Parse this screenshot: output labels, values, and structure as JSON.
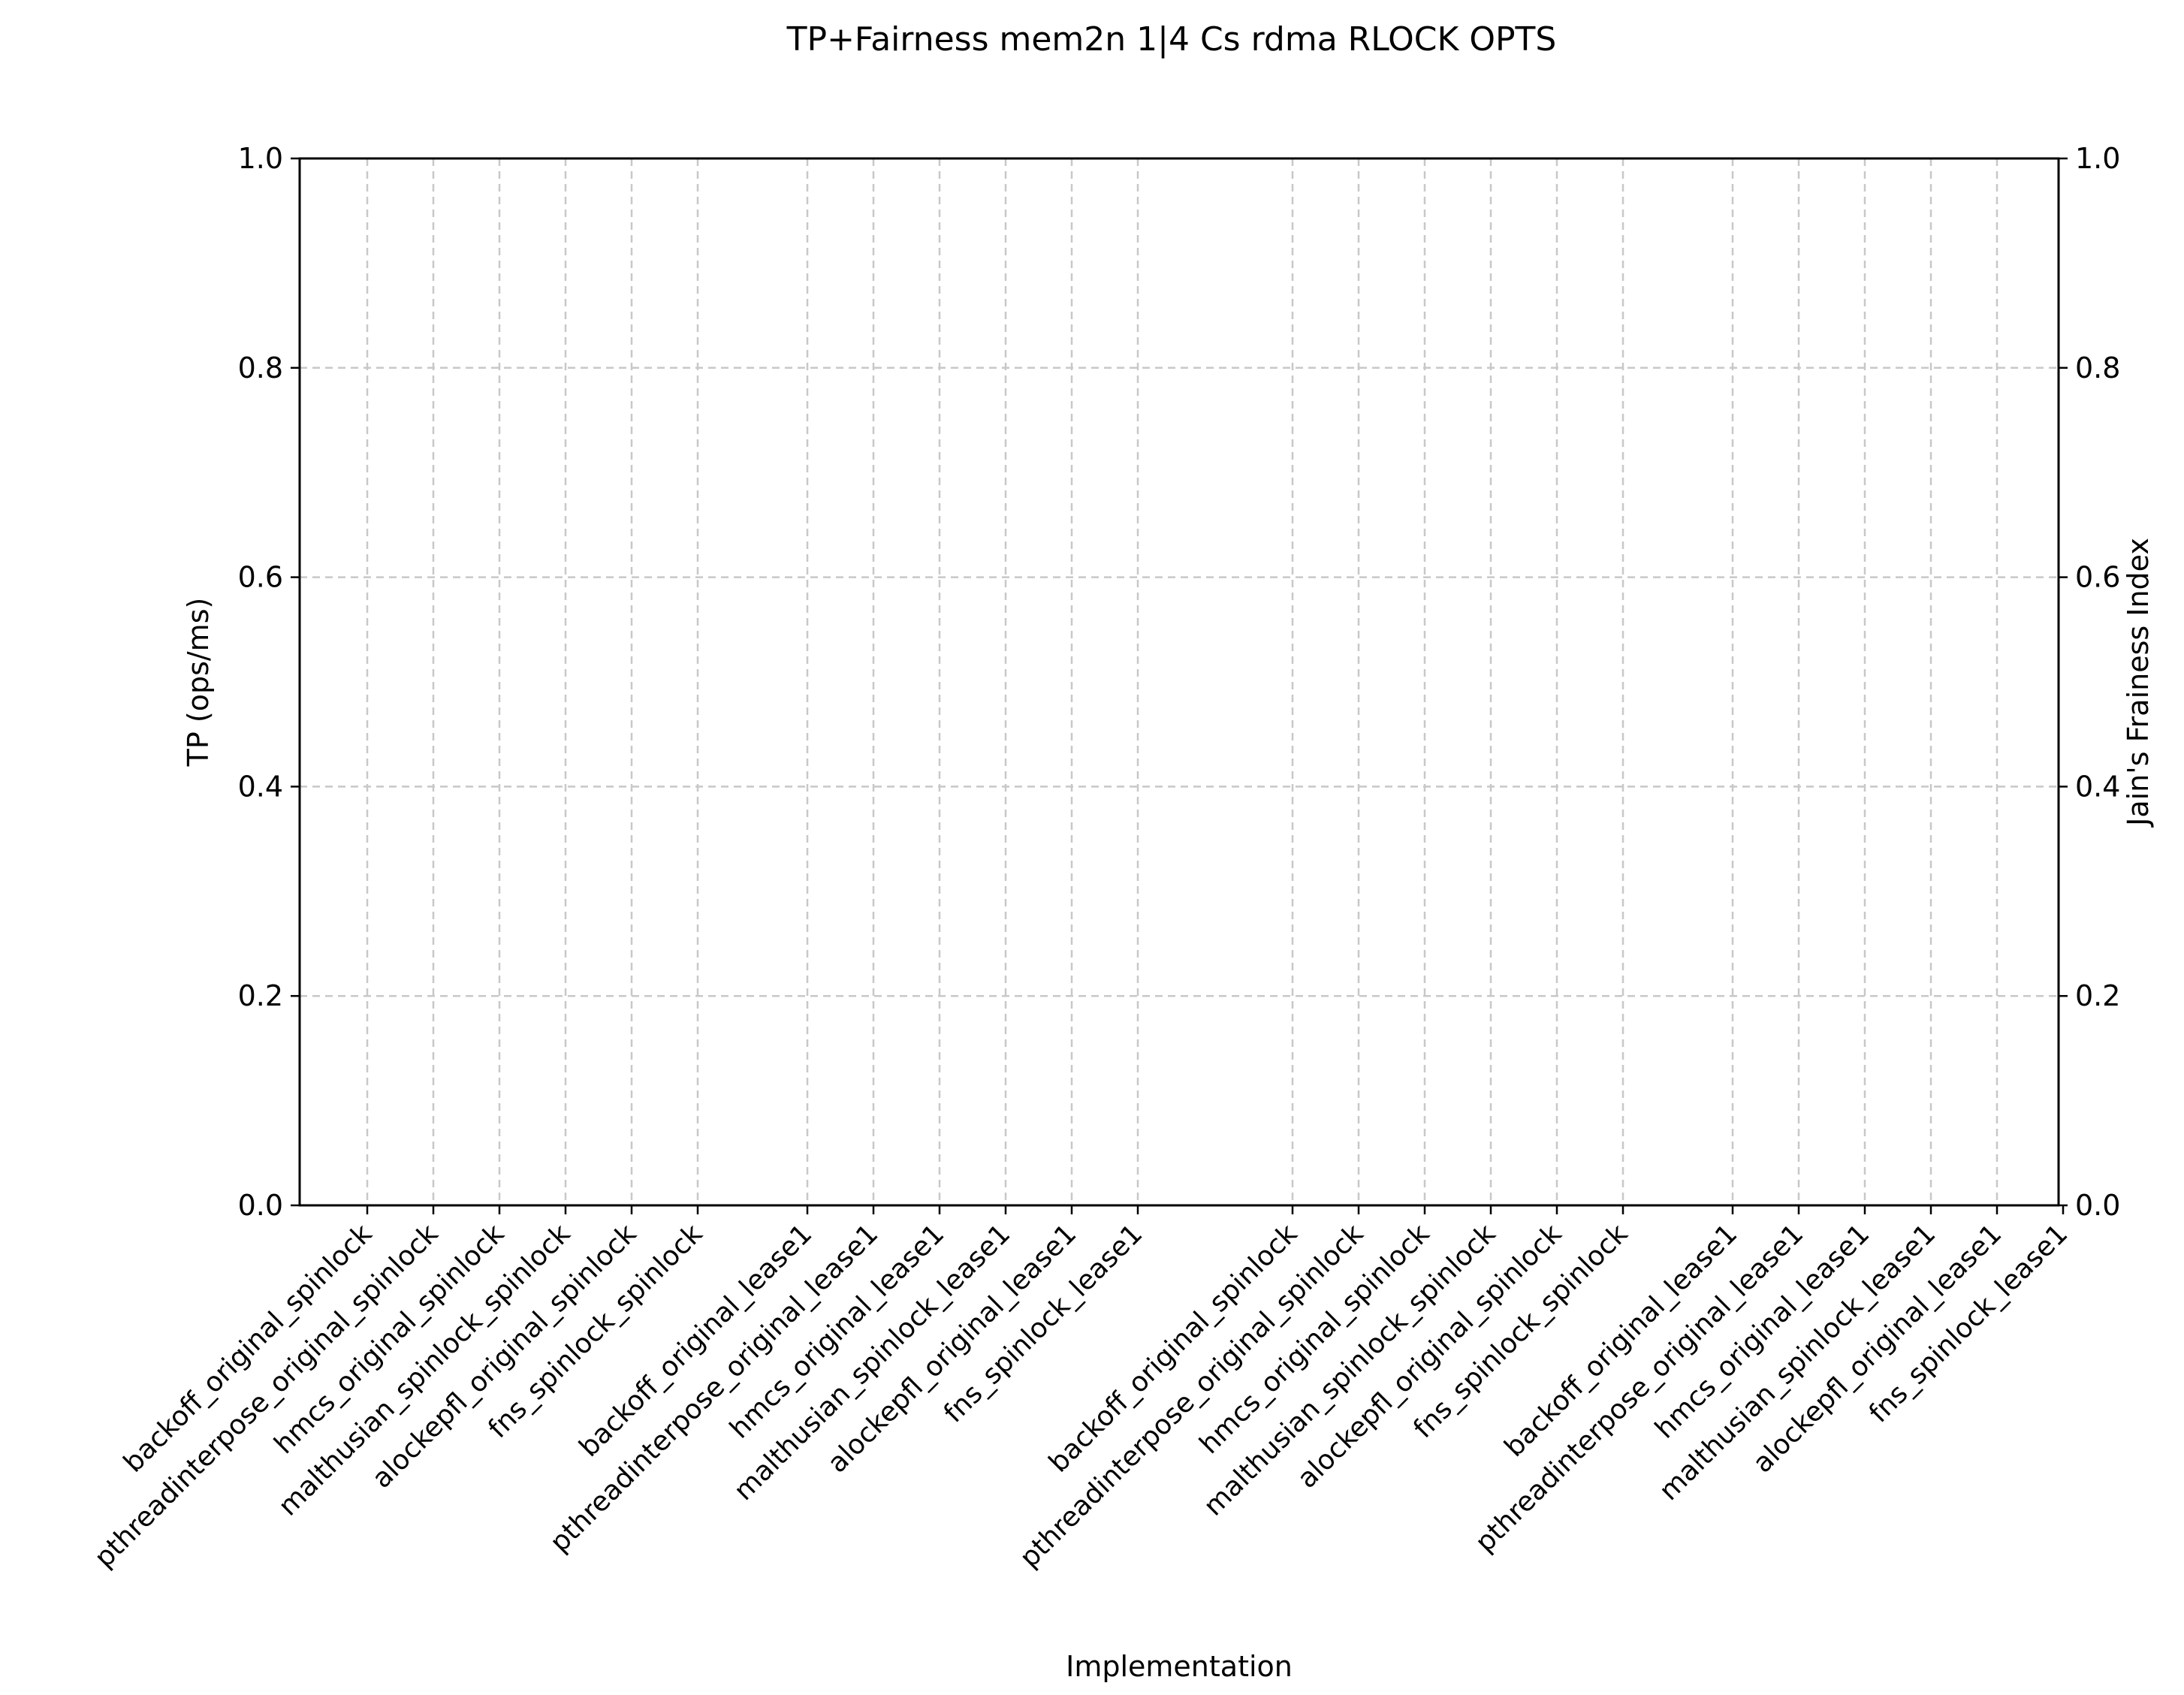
{
  "chart_data": {
    "type": "bar",
    "title": "TP+Fairness mem2n 1|4 Cs rdma RLOCK OPTS",
    "xlabel": "Implementation",
    "ylabel": "TP (ops/ms)",
    "ylabel_right": "Jain's Frainess Index",
    "ylim": [
      0.0,
      1.0
    ],
    "ylim_right": [
      0.0,
      1.0
    ],
    "yticks": [
      "0.0",
      "0.2",
      "0.4",
      "0.6",
      "0.8",
      "1.0"
    ],
    "yticks_right": [
      "0.0",
      "0.2",
      "0.4",
      "0.6",
      "0.8",
      "1.0"
    ],
    "grid": true,
    "grid_style": "dashed",
    "grid_color": "#c8c8c8",
    "categories": [
      "backoff_original_spinlock",
      "pthreadinterpose_original_spinlock",
      "hmcs_original_spinlock",
      "malthusian_spinlock_spinlock",
      "alockepfl_original_spinlock",
      "fns_spinlock_spinlock",
      "backoff_original_lease1",
      "pthreadinterpose_original_lease1",
      "hmcs_original_lease1",
      "malthusian_spinlock_lease1",
      "alockepfl_original_lease1",
      "fns_spinlock_lease1",
      "backoff_original_spinlock",
      "pthreadinterpose_original_spinlock",
      "hmcs_original_spinlock",
      "malthusian_spinlock_spinlock",
      "alockepfl_original_spinlock",
      "fns_spinlock_spinlock",
      "backoff_original_lease1",
      "pthreadinterpose_original_lease1",
      "hmcs_original_lease1",
      "malthusian_spinlock_lease1",
      "alockepfl_original_lease1",
      "fns_spinlock_lease1"
    ],
    "series": [],
    "colors": {
      "axis": "#000000",
      "grid": "#c8c8c8",
      "background": "#ffffff"
    }
  }
}
